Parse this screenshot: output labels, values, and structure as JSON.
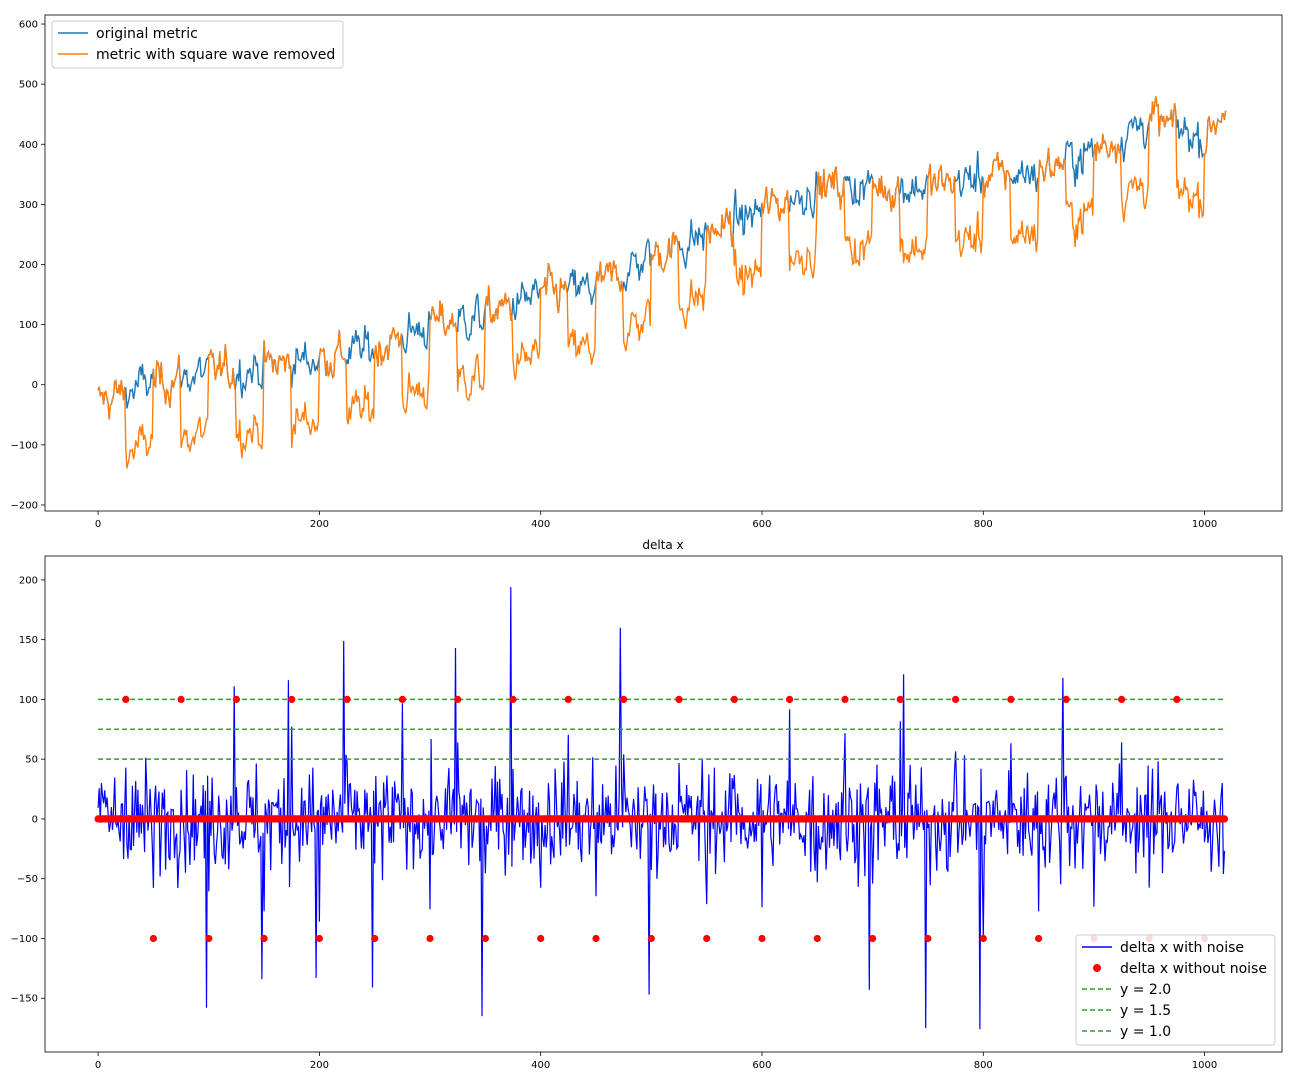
{
  "chart_data": [
    {
      "type": "line",
      "title": "",
      "xlabel": "",
      "ylabel": "",
      "xlim": [
        -48,
        1070
      ],
      "ylim": [
        -210,
        615
      ],
      "xticks": [
        0,
        200,
        400,
        600,
        800,
        1000
      ],
      "yticks": [
        -200,
        -100,
        0,
        100,
        200,
        300,
        400,
        500,
        600
      ],
      "grid": false,
      "legend_position": "upper-left",
      "square_wave": {
        "period": 50,
        "amplitude": 100,
        "high_start": 25,
        "high_length": 25
      },
      "series": [
        {
          "name": "original metric",
          "color": "#1f77b4",
          "trend_x": [
            0,
            50,
            100,
            150,
            200,
            250,
            300,
            350,
            400,
            450,
            500,
            550,
            600,
            650,
            700,
            750,
            800,
            850,
            900,
            950,
            1000,
            1019
          ],
          "trend_y": [
            -30,
            5,
            20,
            30,
            45,
            60,
            100,
            115,
            150,
            160,
            215,
            250,
            290,
            330,
            330,
            330,
            345,
            355,
            390,
            440,
            410,
            470
          ]
        },
        {
          "name": "metric with square wave removed",
          "color": "#ff7f0e",
          "trend_x": [
            0,
            50,
            100,
            150,
            200,
            250,
            300,
            350,
            400,
            450,
            500,
            550,
            600,
            650,
            700,
            750,
            800,
            850,
            900,
            950,
            1000,
            1019
          ],
          "trend_y": [
            -30,
            -95,
            20,
            -70,
            45,
            -40,
            100,
            15,
            150,
            60,
            215,
            150,
            290,
            230,
            330,
            230,
            345,
            255,
            390,
            340,
            410,
            470
          ]
        }
      ]
    },
    {
      "type": "line",
      "title": "delta x",
      "xlabel": "",
      "ylabel": "",
      "xlim": [
        -48,
        1070
      ],
      "ylim": [
        -195,
        220
      ],
      "xticks": [
        0,
        200,
        400,
        600,
        800,
        1000
      ],
      "yticks": [
        -150,
        -100,
        -50,
        0,
        50,
        100,
        150,
        200
      ],
      "grid": false,
      "legend_position": "lower-right",
      "n_points": 1019,
      "noise_spikes": [
        {
          "x": 373,
          "y": 194
        },
        {
          "x": 323,
          "y": 143
        },
        {
          "x": 222,
          "y": 149
        },
        {
          "x": 472,
          "y": 160
        },
        {
          "x": 98,
          "y": -158
        },
        {
          "x": 347,
          "y": -165
        },
        {
          "x": 748,
          "y": -175
        },
        {
          "x": 797,
          "y": -176
        },
        {
          "x": 498,
          "y": -147
        },
        {
          "x": 697,
          "y": -143
        },
        {
          "x": 248,
          "y": -141
        },
        {
          "x": 148,
          "y": -134
        },
        {
          "x": 197,
          "y": -133
        },
        {
          "x": 872,
          "y": 118
        },
        {
          "x": 728,
          "y": 121
        },
        {
          "x": 172,
          "y": 116
        },
        {
          "x": 123,
          "y": 111
        }
      ],
      "clean_points": {
        "up_x": [
          25,
          75,
          125,
          175,
          225,
          275,
          325,
          375,
          425,
          475,
          525,
          575,
          625,
          675,
          725,
          775,
          825,
          875,
          925,
          975
        ],
        "down_x": [
          50,
          100,
          150,
          200,
          250,
          300,
          350,
          400,
          450,
          500,
          550,
          600,
          650,
          700,
          750,
          800,
          850,
          900,
          950,
          1000
        ],
        "up_value": 100,
        "down_value": -100,
        "base_value": 0
      },
      "hlines": [
        {
          "y": 100,
          "name": "y = 2.0",
          "color": "#2ca02c"
        },
        {
          "y": 75,
          "name": "y = 1.5",
          "color": "#2ca02c"
        },
        {
          "y": 50,
          "name": "y = 1.0",
          "color": "#2ca02c"
        }
      ],
      "hline_x_range": [
        0,
        1019
      ],
      "series": [
        {
          "name": "delta x with noise",
          "color": "#0000ff"
        },
        {
          "name": "delta x without noise",
          "color": "#ff0000"
        }
      ]
    }
  ]
}
